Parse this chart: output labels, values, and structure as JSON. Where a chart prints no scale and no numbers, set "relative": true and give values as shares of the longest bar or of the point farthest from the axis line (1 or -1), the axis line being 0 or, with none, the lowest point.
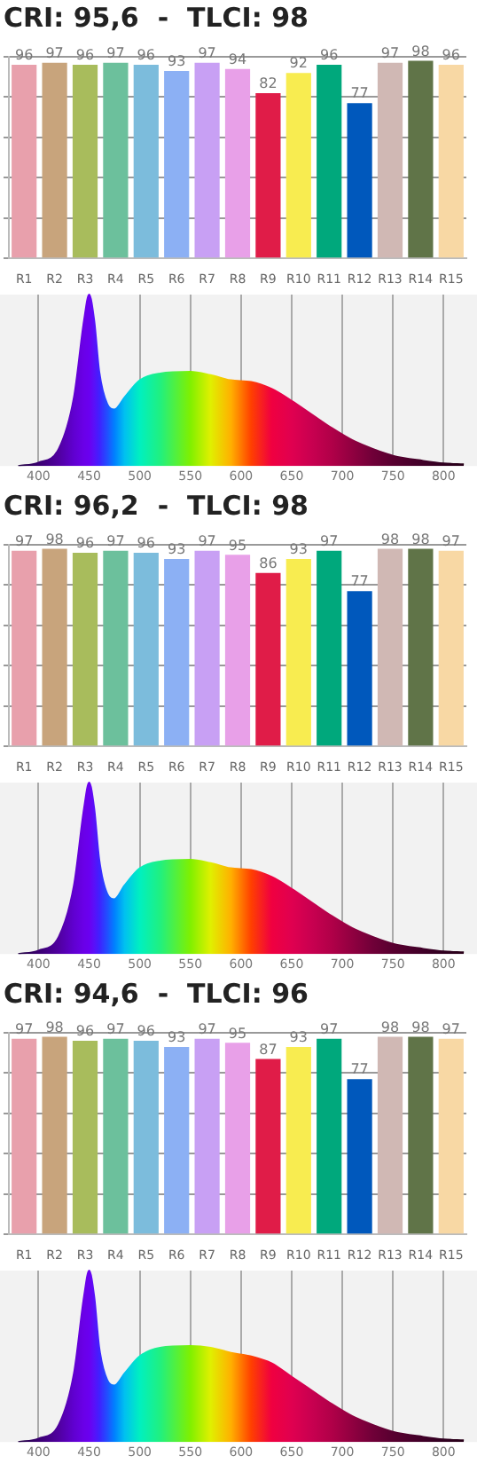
{
  "chart_data": [
    {
      "type": "bar",
      "title": "CRI: 95,6  -  TLCI: 98",
      "categories": [
        "R1",
        "R2",
        "R3",
        "R4",
        "R5",
        "R6",
        "R7",
        "R8",
        "R9",
        "R10",
        "R11",
        "R12",
        "R13",
        "R14",
        "R15"
      ],
      "values": [
        96,
        97,
        96,
        97,
        96,
        93,
        97,
        94,
        82,
        92,
        96,
        77,
        97,
        98,
        96
      ],
      "colors": [
        "#e8a0ac",
        "#c8a47c",
        "#a8bc5c",
        "#6cc09c",
        "#7cbcdc",
        "#8cb0f4",
        "#c8a0f4",
        "#e8a0e8",
        "#e01c48",
        "#f8ec50",
        "#00a87c",
        "#0058bc",
        "#d0b8b4",
        "#607448",
        "#f8d8a4"
      ],
      "ylim": [
        0,
        100
      ],
      "yticks": [
        {
          "value": 0,
          "label": null
        },
        {
          "value": 20,
          "label": null
        },
        {
          "value": 40,
          "label": null
        },
        {
          "value": 60,
          "label": null
        },
        {
          "value": 80,
          "label": null
        },
        {
          "value": 100,
          "label": null
        }
      ],
      "grid": "y",
      "tick_labels": "x",
      "data_labels": true
    },
    {
      "type": "area",
      "relative": true,
      "x": [
        380,
        400,
        420,
        435,
        445,
        450,
        455,
        460,
        468,
        475,
        485,
        500,
        520,
        550,
        570,
        590,
        610,
        630,
        650,
        670,
        690,
        710,
        730,
        750,
        780,
        800,
        820
      ],
      "values": [
        0,
        0.02,
        0.1,
        0.4,
        0.85,
        1,
        0.85,
        0.55,
        0.36,
        0.33,
        0.4,
        0.5,
        0.54,
        0.55,
        0.53,
        0.5,
        0.49,
        0.45,
        0.38,
        0.3,
        0.22,
        0.15,
        0.1,
        0.06,
        0.03,
        0.015,
        0.01
      ],
      "colors": [
        "#200040",
        "#3a0070",
        "#5000a0",
        "#6000d0",
        "#6a00e8",
        "#6a00f0",
        "#5a10f8",
        "#4020ff",
        "#2050ff",
        "#0080ff",
        "#00c0f0",
        "#00f0c0",
        "#20f080",
        "#80f000",
        "#e0f000",
        "#ffb000",
        "#ff4000",
        "#f00040",
        "#e00050",
        "#c80050",
        "#b00048",
        "#900040",
        "#700038",
        "#580030",
        "#400028",
        "#300020",
        "#280018"
      ],
      "xlim": [
        362,
        833
      ],
      "xticks": [
        400,
        450,
        500,
        550,
        600,
        650,
        700,
        750,
        800
      ],
      "grid": "x",
      "tick_labels": "x"
    },
    {
      "type": "bar",
      "title": "CRI: 96,2  -  TLCI: 98",
      "categories": [
        "R1",
        "R2",
        "R3",
        "R4",
        "R5",
        "R6",
        "R7",
        "R8",
        "R9",
        "R10",
        "R11",
        "R12",
        "R13",
        "R14",
        "R15"
      ],
      "values": [
        97,
        98,
        96,
        97,
        96,
        93,
        97,
        95,
        86,
        93,
        97,
        77,
        98,
        98,
        97
      ],
      "colors": [
        "#e8a0ac",
        "#c8a47c",
        "#a8bc5c",
        "#6cc09c",
        "#7cbcdc",
        "#8cb0f4",
        "#c8a0f4",
        "#e8a0e8",
        "#e01c48",
        "#f8ec50",
        "#00a87c",
        "#0058bc",
        "#d0b8b4",
        "#607448",
        "#f8d8a4"
      ],
      "ylim": [
        0,
        100
      ],
      "yticks": [
        {
          "value": 0,
          "label": null
        },
        {
          "value": 20,
          "label": null
        },
        {
          "value": 40,
          "label": null
        },
        {
          "value": 60,
          "label": null
        },
        {
          "value": 80,
          "label": null
        },
        {
          "value": 100,
          "label": null
        }
      ],
      "grid": "y",
      "tick_labels": "x",
      "data_labels": true
    },
    {
      "type": "area",
      "relative": true,
      "x": [
        380,
        400,
        420,
        435,
        445,
        450,
        455,
        460,
        468,
        475,
        485,
        500,
        520,
        550,
        570,
        590,
        610,
        630,
        650,
        670,
        690,
        710,
        730,
        750,
        780,
        800,
        820
      ],
      "values": [
        0,
        0.02,
        0.1,
        0.4,
        0.85,
        1,
        0.85,
        0.55,
        0.35,
        0.32,
        0.4,
        0.5,
        0.54,
        0.55,
        0.53,
        0.5,
        0.49,
        0.45,
        0.38,
        0.3,
        0.22,
        0.15,
        0.1,
        0.06,
        0.03,
        0.015,
        0.01
      ],
      "colors": [
        "#200040",
        "#3a0070",
        "#5000a0",
        "#6000d0",
        "#6a00e8",
        "#6a00f0",
        "#5a10f8",
        "#4020ff",
        "#2050ff",
        "#0080ff",
        "#00c0f0",
        "#00f0c0",
        "#20f080",
        "#80f000",
        "#e0f000",
        "#ffb000",
        "#ff4000",
        "#f00040",
        "#e00050",
        "#c80050",
        "#b00048",
        "#900040",
        "#700038",
        "#580030",
        "#400028",
        "#300020",
        "#280018"
      ],
      "xlim": [
        362,
        833
      ],
      "xticks": [
        400,
        450,
        500,
        550,
        600,
        650,
        700,
        750,
        800
      ],
      "grid": "x",
      "tick_labels": "x"
    },
    {
      "type": "bar",
      "title": "CRI: 94,6  -  TLCI: 96",
      "categories": [
        "R1",
        "R2",
        "R3",
        "R4",
        "R5",
        "R6",
        "R7",
        "R8",
        "R9",
        "R10",
        "R11",
        "R12",
        "R13",
        "R14",
        "R15"
      ],
      "values": [
        97,
        98,
        96,
        97,
        96,
        93,
        97,
        95,
        87,
        93,
        97,
        77,
        98,
        98,
        97
      ],
      "colors": [
        "#e8a0ac",
        "#c8a47c",
        "#a8bc5c",
        "#6cc09c",
        "#7cbcdc",
        "#8cb0f4",
        "#c8a0f4",
        "#e8a0e8",
        "#e01c48",
        "#f8ec50",
        "#00a87c",
        "#0058bc",
        "#d0b8b4",
        "#607448",
        "#f8d8a4"
      ],
      "ylim": [
        0,
        100
      ],
      "yticks": [
        {
          "value": 0,
          "label": null
        },
        {
          "value": 20,
          "label": null
        },
        {
          "value": 40,
          "label": null
        },
        {
          "value": 60,
          "label": null
        },
        {
          "value": 80,
          "label": null
        },
        {
          "value": 100,
          "label": null
        }
      ],
      "grid": "y",
      "tick_labels": "x",
      "data_labels": true
    },
    {
      "type": "area",
      "relative": true,
      "x": [
        380,
        400,
        420,
        435,
        445,
        450,
        455,
        460,
        468,
        475,
        485,
        500,
        520,
        550,
        570,
        590,
        610,
        630,
        650,
        670,
        690,
        710,
        730,
        750,
        780,
        800,
        820
      ],
      "values": [
        0,
        0.02,
        0.1,
        0.4,
        0.85,
        1,
        0.85,
        0.55,
        0.36,
        0.33,
        0.4,
        0.5,
        0.55,
        0.56,
        0.55,
        0.52,
        0.5,
        0.46,
        0.38,
        0.3,
        0.22,
        0.15,
        0.1,
        0.06,
        0.03,
        0.015,
        0.01
      ],
      "colors": [
        "#200040",
        "#3a0070",
        "#5000a0",
        "#6000d0",
        "#6a00e8",
        "#6a00f0",
        "#5a10f8",
        "#4020ff",
        "#2050ff",
        "#0080ff",
        "#00c0f0",
        "#00f0c0",
        "#20f080",
        "#80f000",
        "#e0f000",
        "#ffb000",
        "#ff4000",
        "#f00040",
        "#e00050",
        "#c80050",
        "#b00048",
        "#900040",
        "#700038",
        "#580030",
        "#400028",
        "#300020",
        "#280018"
      ],
      "xlim": [
        362,
        833
      ],
      "xticks": [
        400,
        450,
        500,
        550,
        600,
        650,
        700,
        750,
        800
      ],
      "grid": "x",
      "tick_labels": "x"
    }
  ]
}
